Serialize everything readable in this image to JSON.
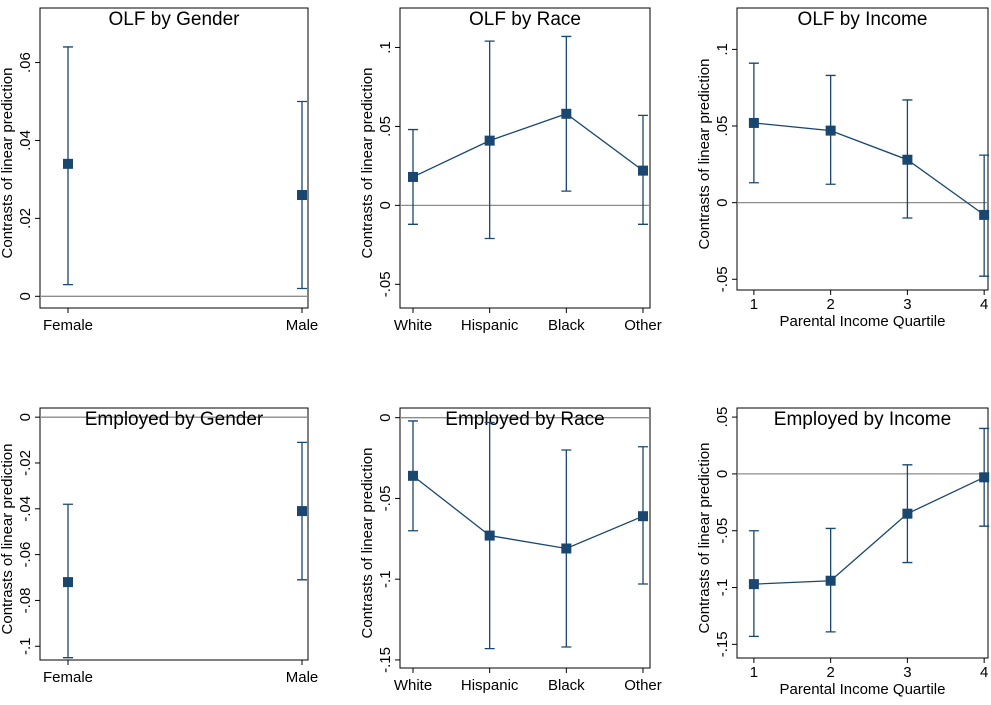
{
  "chart_data": [
    {
      "type": "dot",
      "title": "OLF by Gender",
      "ylabel": "Contrasts of linear prediction",
      "categories": [
        "Female",
        "Male"
      ],
      "values": [
        0.034,
        0.026
      ],
      "ci_low": [
        0.003,
        0.002
      ],
      "ci_high": [
        0.064,
        0.05
      ],
      "ylim": [
        -0.003,
        0.074
      ],
      "yticks": [
        0,
        {
          "value": 0.02,
          "label": ".02"
        },
        {
          "value": 0.04,
          "label": ".04"
        },
        {
          "value": 0.06,
          "label": ".06"
        }
      ],
      "refline": 0,
      "color": "#1a476f"
    },
    {
      "type": "line",
      "title": "OLF by Race",
      "ylabel": "Contrasts of linear prediction",
      "categories": [
        "White",
        "Hispanic",
        "Black",
        "Other"
      ],
      "values": [
        0.018,
        0.041,
        0.058,
        0.022
      ],
      "ci_low": [
        -0.012,
        -0.021,
        0.009,
        -0.012
      ],
      "ci_high": [
        0.048,
        0.104,
        0.107,
        0.057
      ],
      "ylim": [
        -0.065,
        0.125
      ],
      "yticks": [
        {
          "value": -0.05,
          "label": "-.05"
        },
        0,
        {
          "value": 0.05,
          "label": ".05"
        },
        {
          "value": 0.1,
          "label": ".1"
        }
      ],
      "refline": 0,
      "color": "#1a476f"
    },
    {
      "type": "line",
      "title": "OLF by Income",
      "ylabel": "Contrasts of linear prediction",
      "xlabel": "Parental Income Quartile",
      "x": [
        1,
        2,
        3,
        4
      ],
      "xlim": [
        0.78,
        4.05
      ],
      "xticks": [
        1,
        2,
        3,
        4
      ],
      "values": [
        0.052,
        0.047,
        0.028,
        -0.008
      ],
      "ci_low": [
        0.013,
        0.012,
        -0.01,
        -0.048
      ],
      "ci_high": [
        0.091,
        0.083,
        0.067,
        0.031
      ],
      "ylim": [
        -0.057,
        0.127
      ],
      "yticks": [
        {
          "value": -0.05,
          "label": "-.05"
        },
        0,
        {
          "value": 0.05,
          "label": ".05"
        },
        {
          "value": 0.1,
          "label": ".1"
        }
      ],
      "refline": 0,
      "color": "#1a476f"
    },
    {
      "type": "dot",
      "title": "Employed by Gender",
      "ylabel": "Contrasts of linear prediction",
      "categories": [
        "Female",
        "Male"
      ],
      "values": [
        -0.072,
        -0.041
      ],
      "ci_low": [
        -0.105,
        -0.071
      ],
      "ci_high": [
        -0.038,
        -0.011
      ],
      "ylim": [
        -0.106,
        0.004
      ],
      "yticks": [
        {
          "value": -0.1,
          "label": "-.1"
        },
        {
          "value": -0.08,
          "label": "-.08"
        },
        {
          "value": -0.06,
          "label": "-.06"
        },
        {
          "value": -0.04,
          "label": "-.04"
        },
        {
          "value": -0.02,
          "label": "-.02"
        },
        0
      ],
      "refline": 0,
      "color": "#1a476f"
    },
    {
      "type": "line",
      "title": "Employed by Race",
      "ylabel": "Contrasts of linear prediction",
      "categories": [
        "White",
        "Hispanic",
        "Black",
        "Other"
      ],
      "values": [
        -0.036,
        -0.073,
        -0.081,
        -0.061
      ],
      "ci_low": [
        -0.07,
        -0.143,
        -0.142,
        -0.103
      ],
      "ci_high": [
        -0.002,
        -0.003,
        -0.02,
        -0.018
      ],
      "ylim": [
        -0.155,
        0.006
      ],
      "yticks": [
        {
          "value": -0.15,
          "label": "-.15"
        },
        {
          "value": -0.1,
          "label": "-.1"
        },
        {
          "value": -0.05,
          "label": "-.05"
        },
        0
      ],
      "refline": 0,
      "color": "#1a476f"
    },
    {
      "type": "line",
      "title": "Employed by Income",
      "ylabel": "Contrasts of linear prediction",
      "xlabel": "Parental Income Quartile",
      "x": [
        1,
        2,
        3,
        4
      ],
      "xlim": [
        0.78,
        4.05
      ],
      "xticks": [
        1,
        2,
        3,
        4
      ],
      "values": [
        -0.097,
        -0.094,
        -0.035,
        -0.003
      ],
      "ci_low": [
        -0.143,
        -0.139,
        -0.078,
        -0.046
      ],
      "ci_high": [
        -0.05,
        -0.048,
        0.008,
        0.04
      ],
      "ylim": [
        -0.162,
        0.058
      ],
      "yticks": [
        {
          "value": -0.15,
          "label": "-.15"
        },
        {
          "value": -0.1,
          "label": "-.1"
        },
        {
          "value": -0.05,
          "label": "-.05"
        },
        0,
        {
          "value": 0.05,
          "label": ".05"
        }
      ],
      "refline": 0,
      "color": "#1a476f"
    }
  ]
}
